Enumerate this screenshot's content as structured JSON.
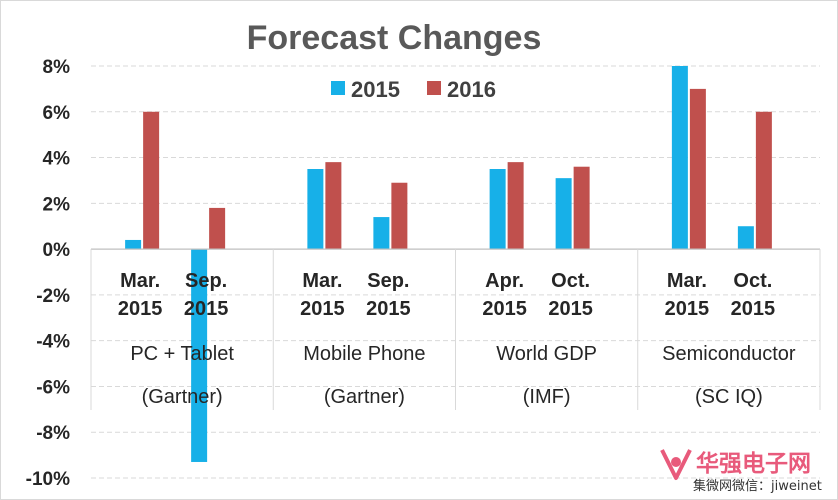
{
  "chart_data": {
    "type": "bar",
    "title": "Forecast Changes",
    "yticks": [
      "8%",
      "6%",
      "4%",
      "2%",
      "0%",
      "-2%",
      "-4%",
      "-6%",
      "-8%",
      "-10%"
    ],
    "ylim": [
      -10,
      8
    ],
    "categories": [
      {
        "line1": "Mar.",
        "line2": "2015"
      },
      {
        "line1": "Sep.",
        "line2": "2015"
      },
      {
        "line1": "Mar.",
        "line2": "2015"
      },
      {
        "line1": "Sep.",
        "line2": "2015"
      },
      {
        "line1": "Apr.",
        "line2": "2015"
      },
      {
        "line1": "Oct.",
        "line2": "2015"
      },
      {
        "line1": "Mar.",
        "line2": "2015"
      },
      {
        "line1": "Oct.",
        "line2": "2015"
      }
    ],
    "groups": [
      {
        "name": "PC + Tablet",
        "source": "(Gartner)"
      },
      {
        "name": "Mobile Phone",
        "source": "(Gartner)"
      },
      {
        "name": "World GDP",
        "source": "(IMF)"
      },
      {
        "name": "Semiconductor",
        "source": "(SC IQ)"
      }
    ],
    "series": [
      {
        "name": "2015",
        "color": "#17b0e8",
        "values": [
          0.4,
          -9.3,
          3.5,
          1.4,
          3.5,
          3.1,
          8.0,
          1.0
        ]
      },
      {
        "name": "2016",
        "color": "#c0504d",
        "values": [
          6.0,
          1.8,
          3.8,
          2.9,
          3.8,
          3.6,
          7.0,
          6.0
        ]
      }
    ],
    "grid": true,
    "legend_position": "top"
  },
  "watermark": {
    "brand_cn": "华强电子网",
    "wechat_line": "集微网微信：jiweinet"
  }
}
